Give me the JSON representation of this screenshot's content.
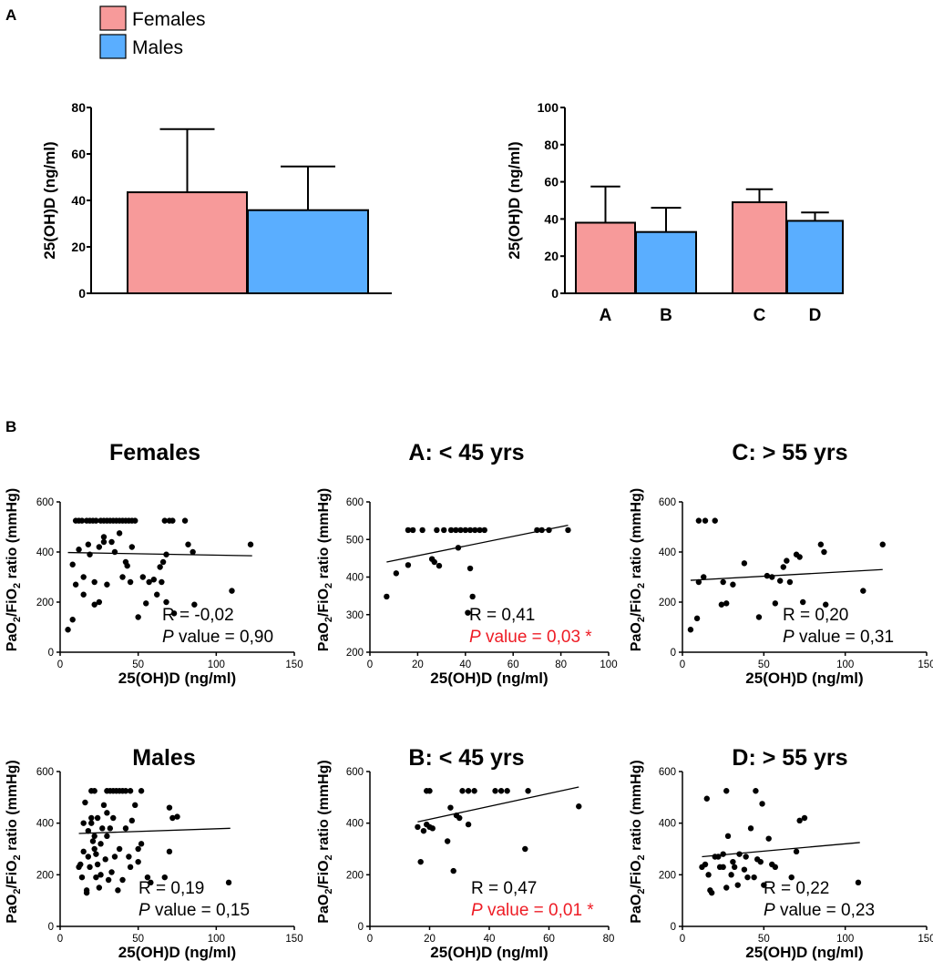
{
  "panel_labels": {
    "a": "A",
    "b": "B"
  },
  "colors": {
    "females": "#f79a9a",
    "males": "#5aaeff",
    "significant": "#ee1c25",
    "ink": "#000000"
  },
  "legend": [
    {
      "label": "Females",
      "color": "#f79a9a"
    },
    {
      "label": "Males",
      "color": "#5aaeff"
    }
  ],
  "chart_data": [
    {
      "type": "bar",
      "id": "bar-sex",
      "ylabel": "25(OH)D (ng/ml)",
      "ylim": [
        0,
        80
      ],
      "yticks": [
        0,
        20,
        40,
        60,
        80
      ],
      "categories": [
        "Females",
        "Males"
      ],
      "category_labels": [
        "",
        ""
      ],
      "values": [
        43.5,
        35.8
      ],
      "errors": [
        27.2,
        18.8
      ],
      "colors": [
        "#f79a9a",
        "#5aaeff"
      ]
    },
    {
      "type": "bar",
      "id": "bar-age",
      "ylabel": "25(OH)D (ng/ml)",
      "ylim": [
        0,
        100
      ],
      "yticks": [
        0,
        20,
        40,
        60,
        80,
        100
      ],
      "categories": [
        "A",
        "B",
        "C",
        "D"
      ],
      "category_labels": [
        "A",
        "B",
        "C",
        "D"
      ],
      "values": [
        38,
        33,
        49,
        39
      ],
      "errors": [
        19.5,
        13,
        7,
        4.5
      ],
      "colors": [
        "#f79a9a",
        "#5aaeff",
        "#f79a9a",
        "#5aaeff"
      ]
    },
    {
      "type": "scatter",
      "id": "sc-females",
      "title": "Females",
      "xlabel": "25(OH)D (ng/ml)",
      "ylabel_parts": [
        "PaO",
        "2",
        "/FiO",
        "2",
        " ratio (mmHg)"
      ],
      "xlim": [
        0,
        150
      ],
      "xticks": [
        0,
        50,
        100,
        150
      ],
      "ylim": [
        0,
        600
      ],
      "yticks": [
        0,
        200,
        400,
        600
      ],
      "r_text": "R = -0,02",
      "p_italic": "P",
      "p_text": " value = 0,90",
      "significant": false,
      "trend": [
        [
          5,
          398
        ],
        [
          123,
          385
        ]
      ],
      "points": [
        [
          10,
          525
        ],
        [
          12,
          525
        ],
        [
          14,
          525
        ],
        [
          17,
          525
        ],
        [
          19,
          525
        ],
        [
          21,
          525
        ],
        [
          23,
          525
        ],
        [
          26,
          525
        ],
        [
          28,
          525
        ],
        [
          30,
          525
        ],
        [
          32,
          525
        ],
        [
          34,
          525
        ],
        [
          36,
          525
        ],
        [
          38,
          525
        ],
        [
          40,
          525
        ],
        [
          42,
          525
        ],
        [
          44,
          525
        ],
        [
          46,
          525
        ],
        [
          48,
          525
        ],
        [
          67,
          525
        ],
        [
          70,
          525
        ],
        [
          72,
          525
        ],
        [
          80,
          525
        ],
        [
          5,
          90
        ],
        [
          8,
          130
        ],
        [
          8,
          350
        ],
        [
          10,
          270
        ],
        [
          12,
          410
        ],
        [
          15,
          300
        ],
        [
          15,
          230
        ],
        [
          18,
          430
        ],
        [
          19,
          390
        ],
        [
          22,
          280
        ],
        [
          22,
          190
        ],
        [
          25,
          200
        ],
        [
          25,
          420
        ],
        [
          28,
          440
        ],
        [
          28,
          460
        ],
        [
          30,
          270
        ],
        [
          33,
          440
        ],
        [
          35,
          400
        ],
        [
          38,
          475
        ],
        [
          40,
          300
        ],
        [
          42,
          360
        ],
        [
          43,
          345
        ],
        [
          45,
          280
        ],
        [
          46,
          420
        ],
        [
          50,
          140
        ],
        [
          53,
          300
        ],
        [
          55,
          195
        ],
        [
          57,
          280
        ],
        [
          60,
          290
        ],
        [
          62,
          230
        ],
        [
          64,
          340
        ],
        [
          65,
          280
        ],
        [
          66,
          360
        ],
        [
          68,
          390
        ],
        [
          68,
          200
        ],
        [
          73,
          155
        ],
        [
          82,
          430
        ],
        [
          85,
          400
        ],
        [
          86,
          190
        ],
        [
          110,
          245
        ],
        [
          122,
          430
        ]
      ]
    },
    {
      "type": "scatter",
      "id": "sc-a",
      "title": "A: < 45 yrs",
      "xlabel": "25(OH)D (ng/ml)",
      "ylabel_parts": [
        "PaO",
        "2",
        "/FiO",
        "2",
        " ratio (mmHg)"
      ],
      "xlim": [
        0,
        100
      ],
      "xticks": [
        0,
        20,
        40,
        60,
        80,
        100
      ],
      "ylim": [
        200,
        600
      ],
      "yticks": [
        200,
        300,
        400,
        500,
        600
      ],
      "r_text": "R = 0,41",
      "p_italic": "P",
      "p_text": " value = 0,03 *",
      "significant": true,
      "trend": [
        [
          7,
          440
        ],
        [
          83,
          538
        ]
      ],
      "points": [
        [
          16,
          525
        ],
        [
          18,
          525
        ],
        [
          22,
          525
        ],
        [
          28,
          525
        ],
        [
          31,
          525
        ],
        [
          34,
          525
        ],
        [
          36,
          525
        ],
        [
          38,
          525
        ],
        [
          40,
          525
        ],
        [
          42,
          525
        ],
        [
          44,
          525
        ],
        [
          46,
          525
        ],
        [
          48,
          525
        ],
        [
          70,
          525
        ],
        [
          72,
          525
        ],
        [
          75,
          525
        ],
        [
          83,
          525
        ],
        [
          7,
          348
        ],
        [
          11,
          410
        ],
        [
          16,
          432
        ],
        [
          26,
          448
        ],
        [
          27,
          440
        ],
        [
          29,
          430
        ],
        [
          37,
          478
        ],
        [
          41,
          305
        ],
        [
          42,
          423
        ],
        [
          43,
          348
        ]
      ]
    },
    {
      "type": "scatter",
      "id": "sc-c",
      "title": "C: > 55 yrs",
      "xlabel": "25(OH)D (ng/ml)",
      "ylabel_parts": [
        "PaO",
        "2",
        "/FiO",
        "2",
        " ratio (mmHg)"
      ],
      "xlim": [
        0,
        150
      ],
      "xticks": [
        0,
        50,
        100,
        150
      ],
      "ylim": [
        0,
        600
      ],
      "yticks": [
        0,
        200,
        400,
        600
      ],
      "r_text": "R = 0,20",
      "p_italic": "P",
      "p_text": " value = 0,31",
      "significant": false,
      "trend": [
        [
          5,
          287
        ],
        [
          123,
          330
        ]
      ],
      "points": [
        [
          10,
          525
        ],
        [
          14,
          525
        ],
        [
          20,
          525
        ],
        [
          5,
          90
        ],
        [
          9,
          135
        ],
        [
          10,
          280
        ],
        [
          13,
          300
        ],
        [
          24,
          190
        ],
        [
          25,
          280
        ],
        [
          27,
          195
        ],
        [
          31,
          270
        ],
        [
          38,
          355
        ],
        [
          47,
          140
        ],
        [
          52,
          305
        ],
        [
          55,
          300
        ],
        [
          57,
          195
        ],
        [
          60,
          285
        ],
        [
          62,
          340
        ],
        [
          64,
          365
        ],
        [
          66,
          280
        ],
        [
          70,
          390
        ],
        [
          72,
          380
        ],
        [
          74,
          200
        ],
        [
          85,
          430
        ],
        [
          87,
          400
        ],
        [
          88,
          190
        ],
        [
          111,
          245
        ],
        [
          123,
          430
        ]
      ]
    },
    {
      "type": "scatter",
      "id": "sc-males",
      "title": "Males",
      "xlabel": "25(OH)D (ng/ml)",
      "ylabel_parts": [
        "PaO",
        "2",
        "/FiO",
        "2",
        " ratio (mmHg)"
      ],
      "xlim": [
        0,
        150
      ],
      "xticks": [
        0,
        50,
        100,
        150
      ],
      "ylim": [
        0,
        600
      ],
      "yticks": [
        0,
        200,
        400,
        600
      ],
      "r_text": "R = 0,19",
      "p_italic": "P",
      "p_text": " value = 0,15",
      "significant": false,
      "trend": [
        [
          12,
          360
        ],
        [
          109,
          380
        ]
      ],
      "points": [
        [
          20,
          525
        ],
        [
          22,
          525
        ],
        [
          30,
          525
        ],
        [
          32,
          525
        ],
        [
          34,
          525
        ],
        [
          36,
          525
        ],
        [
          38,
          525
        ],
        [
          40,
          525
        ],
        [
          42,
          525
        ],
        [
          45,
          525
        ],
        [
          52,
          525
        ],
        [
          12,
          230
        ],
        [
          13,
          240
        ],
        [
          14,
          190
        ],
        [
          15,
          400
        ],
        [
          15,
          290
        ],
        [
          16,
          480
        ],
        [
          17,
          140
        ],
        [
          17,
          130
        ],
        [
          18,
          270
        ],
        [
          18,
          370
        ],
        [
          19,
          230
        ],
        [
          20,
          420
        ],
        [
          20,
          400
        ],
        [
          21,
          330
        ],
        [
          22,
          300
        ],
        [
          22,
          350
        ],
        [
          23,
          280
        ],
        [
          23,
          190
        ],
        [
          24,
          240
        ],
        [
          24,
          420
        ],
        [
          25,
          150
        ],
        [
          26,
          320
        ],
        [
          26,
          200
        ],
        [
          27,
          380
        ],
        [
          28,
          470
        ],
        [
          29,
          260
        ],
        [
          30,
          440
        ],
        [
          30,
          350
        ],
        [
          31,
          180
        ],
        [
          32,
          380
        ],
        [
          33,
          210
        ],
        [
          34,
          420
        ],
        [
          35,
          270
        ],
        [
          37,
          140
        ],
        [
          38,
          300
        ],
        [
          40,
          180
        ],
        [
          42,
          380
        ],
        [
          44,
          270
        ],
        [
          45,
          230
        ],
        [
          46,
          410
        ],
        [
          48,
          470
        ],
        [
          50,
          250
        ],
        [
          50,
          300
        ],
        [
          52,
          320
        ],
        [
          56,
          190
        ],
        [
          58,
          170
        ],
        [
          67,
          190
        ],
        [
          70,
          290
        ],
        [
          70,
          460
        ],
        [
          72,
          420
        ],
        [
          75,
          425
        ],
        [
          108,
          170
        ]
      ]
    },
    {
      "type": "scatter",
      "id": "sc-b",
      "title": "B: < 45 yrs",
      "xlabel": "25(OH)D (ng/ml)",
      "ylabel_parts": [
        "PaO",
        "2",
        "/FiO",
        "2",
        " ratio (mmHg)"
      ],
      "xlim": [
        0,
        80
      ],
      "xticks": [
        0,
        20,
        40,
        60,
        80
      ],
      "ylim": [
        0,
        600
      ],
      "yticks": [
        0,
        200,
        400,
        600
      ],
      "r_text": "R = 0,47",
      "p_italic": "P",
      "p_text": " value = 0,01 *",
      "significant": true,
      "trend": [
        [
          16,
          405
        ],
        [
          70,
          540
        ]
      ],
      "points": [
        [
          19,
          525
        ],
        [
          20,
          525
        ],
        [
          31,
          525
        ],
        [
          33,
          525
        ],
        [
          35,
          525
        ],
        [
          42,
          525
        ],
        [
          44,
          525
        ],
        [
          46,
          525
        ],
        [
          53,
          525
        ],
        [
          16,
          385
        ],
        [
          17,
          250
        ],
        [
          18,
          370
        ],
        [
          19,
          395
        ],
        [
          20,
          385
        ],
        [
          21,
          380
        ],
        [
          26,
          330
        ],
        [
          27,
          460
        ],
        [
          28,
          215
        ],
        [
          29,
          430
        ],
        [
          30,
          420
        ],
        [
          33,
          395
        ],
        [
          52,
          300
        ],
        [
          70,
          465
        ]
      ]
    },
    {
      "type": "scatter",
      "id": "sc-d",
      "title": "D: > 55 yrs",
      "xlabel": "25(OH)D (ng/ml)",
      "ylabel_parts": [
        "PaO",
        "2",
        "/FiO",
        "2",
        " ratio (mmHg)"
      ],
      "xlim": [
        0,
        150
      ],
      "xticks": [
        0,
        50,
        100,
        150
      ],
      "ylim": [
        0,
        600
      ],
      "yticks": [
        0,
        200,
        400,
        600
      ],
      "r_text": "R = 0,22",
      "p_italic": "P",
      "p_text": " value = 0,23",
      "significant": false,
      "trend": [
        [
          12,
          270
        ],
        [
          109,
          325
        ]
      ],
      "points": [
        [
          27,
          525
        ],
        [
          45,
          525
        ],
        [
          12,
          230
        ],
        [
          14,
          240
        ],
        [
          15,
          495
        ],
        [
          16,
          200
        ],
        [
          17,
          140
        ],
        [
          18,
          130
        ],
        [
          20,
          270
        ],
        [
          22,
          270
        ],
        [
          23,
          230
        ],
        [
          25,
          280
        ],
        [
          25,
          230
        ],
        [
          27,
          150
        ],
        [
          28,
          350
        ],
        [
          30,
          200
        ],
        [
          31,
          250
        ],
        [
          32,
          230
        ],
        [
          34,
          160
        ],
        [
          35,
          280
        ],
        [
          38,
          220
        ],
        [
          39,
          270
        ],
        [
          40,
          190
        ],
        [
          42,
          380
        ],
        [
          44,
          190
        ],
        [
          46,
          260
        ],
        [
          48,
          250
        ],
        [
          49,
          475
        ],
        [
          50,
          160
        ],
        [
          53,
          340
        ],
        [
          55,
          240
        ],
        [
          57,
          230
        ],
        [
          67,
          190
        ],
        [
          70,
          290
        ],
        [
          72,
          410
        ],
        [
          75,
          420
        ],
        [
          108,
          170
        ]
      ]
    }
  ]
}
